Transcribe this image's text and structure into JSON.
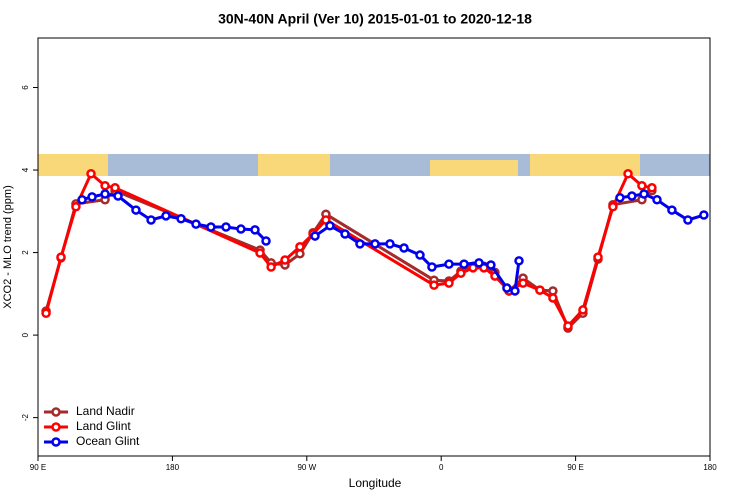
{
  "chart_data": {
    "type": "line",
    "title": "30N-40N April (Ver 10)   2015-01-01 to 2020-12-18",
    "x_label": "Longitude",
    "y_label": "XCO2 - MLO trend (ppm)",
    "xlim": [
      90,
      540
    ],
    "ylim": [
      -2.93,
      7.2
    ],
    "xticks": [
      {
        "value": 90,
        "label": "90 E"
      },
      180,
      {
        "value": 270,
        "label": "90 W"
      },
      {
        "value": 360,
        "label": "0"
      },
      {
        "value": 450,
        "label": "90 E"
      },
      {
        "value": 540,
        "label": "180"
      }
    ],
    "yticks": [
      -2,
      0,
      2,
      4,
      6
    ],
    "legend": "bottomleft",
    "series": [
      {
        "name": "Land Nadir",
        "color": "#a52a2a",
        "x": [
          95.4,
          105.4,
          115.4,
          134.9,
          141.6,
          238.7,
          246.1,
          255.4,
          265.4,
          274.2,
          282.8,
          355.2,
          365.2,
          373.2,
          381.3,
          388.6,
          396.0,
          405.4,
          414.8,
          426.1,
          434.8,
          444.9,
          454.9,
          465.0,
          475.0,
          494.4,
          501.1
        ],
        "values": [
          0.58,
          1.87,
          3.18,
          3.28,
          3.5,
          2.06,
          1.75,
          1.7,
          1.97,
          2.48,
          2.93,
          1.33,
          1.31,
          1.55,
          1.67,
          1.67,
          1.52,
          1.07,
          1.38,
          1.09,
          1.07,
          0.17,
          0.53,
          1.84,
          3.16,
          3.28,
          3.5
        ]
      },
      {
        "name": "Land Glint",
        "color": "#ff0000",
        "x": [
          95.4,
          105.4,
          115.4,
          125.5,
          134.9,
          141.6,
          238.7,
          246.1,
          255.4,
          265.4,
          274.2,
          282.8,
          355.2,
          365.2,
          373.2,
          381.3,
          388.6,
          396.0,
          405.4,
          414.8,
          426.1,
          434.8,
          444.9,
          454.9,
          465.0,
          475.0,
          485.1,
          494.4,
          501.1
        ],
        "values": [
          0.53,
          1.89,
          3.11,
          3.91,
          3.62,
          3.57,
          1.99,
          1.65,
          1.82,
          2.14,
          2.45,
          2.79,
          1.21,
          1.26,
          1.5,
          1.63,
          1.63,
          1.43,
          1.07,
          1.26,
          1.09,
          0.9,
          0.22,
          0.61,
          1.89,
          3.11,
          3.91,
          3.62,
          3.57
        ]
      },
      {
        "name": "Ocean Glint",
        "color": "#0000ee",
        "x": [
          119.5,
          126.2,
          134.9,
          143.6,
          155.6,
          165.7,
          175.7,
          185.8,
          195.8,
          205.8,
          215.9,
          225.9,
          235.3,
          242.7,
          260,
          275.5,
          285.5,
          295.6,
          305.6,
          315.7,
          325.7,
          335.1,
          345.8,
          353.8,
          365.2,
          375.3,
          385.3,
          393.3,
          404.0,
          409.4,
          412.1,
          460,
          479.7,
          487.7,
          495.8,
          504.5,
          514.5,
          525.2,
          535.9
        ],
        "values": [
          3.28,
          3.35,
          3.42,
          3.37,
          3.03,
          2.79,
          2.89,
          2.82,
          2.69,
          2.62,
          2.62,
          2.57,
          2.55,
          2.28,
          null,
          2.4,
          2.65,
          2.45,
          2.21,
          2.21,
          2.21,
          2.11,
          1.94,
          1.65,
          1.72,
          1.72,
          1.75,
          1.7,
          1.14,
          1.07,
          1.8,
          null,
          3.33,
          3.37,
          3.42,
          3.28,
          3.03,
          2.79,
          2.91
        ]
      }
    ]
  }
}
